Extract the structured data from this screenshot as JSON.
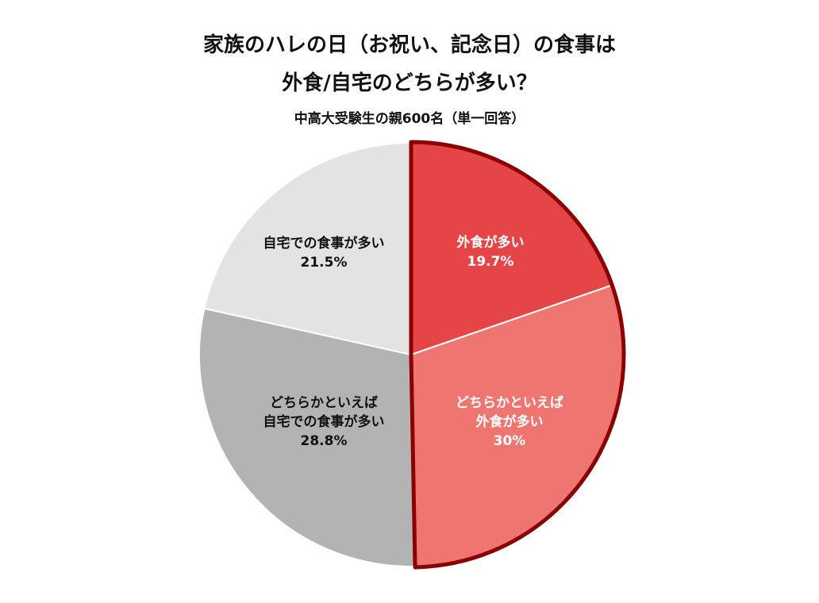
{
  "chart_data": {
    "type": "pie",
    "title": "家族のハレの日（お祝い、記念日）の食事は",
    "title_line2": "外食/自宅のどちらが多い？",
    "subtitle": "中高大受験生の親600名（単一回答）",
    "slices": [
      {
        "label_lines": [
          "外食が多い"
        ],
        "value_label": "19.7%",
        "value": 19.7,
        "color": "#e64547",
        "text_color": "#ffffff"
      },
      {
        "label_lines": [
          "どちらかといえば",
          "外食が多い"
        ],
        "value_label": "30%",
        "value": 30.0,
        "color": "#ef7570",
        "text_color": "#ffffff"
      },
      {
        "label_lines": [
          "どちらかといえば",
          "自宅での食事が多い"
        ],
        "value_label": "28.8%",
        "value": 28.8,
        "color": "#b3b3b3",
        "text_color": "#111111"
      },
      {
        "label_lines": [
          "自宅での食事が多い"
        ],
        "value_label": "21.5%",
        "value": 21.5,
        "color": "#e3e3e3",
        "text_color": "#111111"
      }
    ],
    "highlight_group": {
      "slices": [
        0,
        1
      ],
      "outline_color": "#8b0000"
    }
  }
}
